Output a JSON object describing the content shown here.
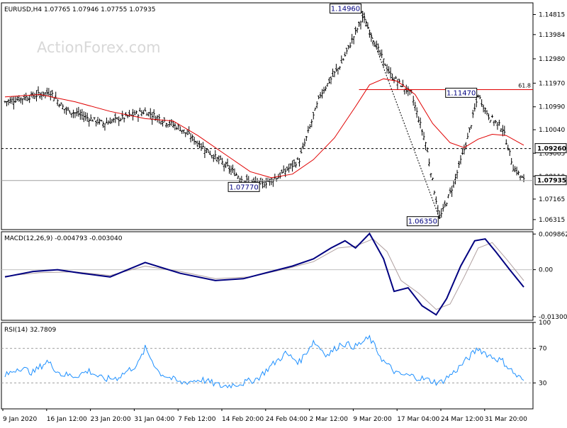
{
  "watermark": "ActionForex.com",
  "colors": {
    "background": "#ffffff",
    "grid_frame": "#000000",
    "bars": "#000000",
    "ma_line": "#e00000",
    "macd_line": "#000080",
    "macd_signal": "#b0a0a0",
    "rsi_line": "#1e90ff",
    "rsi_levels": "#a0a0a0",
    "label_box_text": "#000080",
    "fib_line": "#e00000",
    "watermark": "#d8d8d8"
  },
  "chart_data": [
    {
      "type": "line",
      "panel": "price",
      "header": "EURUSD,H4  1.07765 1.07946 1.07755 1.07935",
      "ylim": [
        1.059,
        1.153
      ],
      "y_ticks": [
        "1.14815",
        "1.13984",
        "1.12980",
        "1.11970",
        "1.10990",
        "1.10040",
        "1.09065",
        "1.08110",
        "1.07165",
        "1.06315"
      ],
      "y_tick_values": [
        1.14815,
        1.13984,
        1.1298,
        1.1197,
        1.1099,
        1.1004,
        1.09065,
        1.0811,
        1.07165,
        1.06315
      ],
      "x_ticks": [
        "9 Jan 2020",
        "16 Jan 12:00",
        "23 Jan 20:00",
        "31 Jan 04:00",
        "7 Feb 12:00",
        "14 Feb 20:00",
        "24 Feb 04:00",
        "2 Mar 12:00",
        "9 Mar 20:00",
        "17 Mar 04:00",
        "24 Mar 12:00",
        "31 Mar 20:00"
      ],
      "close_path": {
        "x_range": [
          0,
          148
        ],
        "anchors": [
          [
            0,
            1.112
          ],
          [
            13,
            1.116
          ],
          [
            17,
            1.109
          ],
          [
            28,
            1.103
          ],
          [
            40,
            1.108
          ],
          [
            50,
            1.101
          ],
          [
            60,
            1.089
          ],
          [
            68,
            1.0795
          ],
          [
            73,
            1.0777
          ],
          [
            78,
            1.081
          ],
          [
            84,
            1.088
          ],
          [
            90,
            1.115
          ],
          [
            96,
            1.128
          ],
          [
            102,
            1.147
          ],
          [
            106,
            1.135
          ],
          [
            110,
            1.123
          ],
          [
            116,
            1.115
          ],
          [
            120,
            1.095
          ],
          [
            124,
            1.0635
          ],
          [
            128,
            1.078
          ],
          [
            132,
            1.097
          ],
          [
            135,
            1.1147
          ],
          [
            138,
            1.106
          ],
          [
            142,
            1.101
          ],
          [
            145,
            1.085
          ],
          [
            148,
            1.0794
          ]
        ]
      },
      "series": [
        {
          "name": "",
          "color": "#e00000",
          "points": [
            [
              0,
              1.114
            ],
            [
              10,
              1.115
            ],
            [
              20,
              1.112
            ],
            [
              30,
              1.108
            ],
            [
              40,
              1.105
            ],
            [
              48,
              1.104
            ],
            [
              55,
              1.098
            ],
            [
              63,
              1.09
            ],
            [
              70,
              1.083
            ],
            [
              76,
              1.0805
            ],
            [
              82,
              1.082
            ],
            [
              88,
              1.088
            ],
            [
              94,
              1.097
            ],
            [
              100,
              1.11
            ],
            [
              104,
              1.119
            ],
            [
              108,
              1.1215
            ],
            [
              112,
              1.1205
            ],
            [
              117,
              1.115
            ],
            [
              122,
              1.103
            ],
            [
              127,
              1.095
            ],
            [
              131,
              1.093
            ],
            [
              135,
              1.0965
            ],
            [
              139,
              1.0985
            ],
            [
              143,
              1.098
            ],
            [
              148,
              1.094
            ]
          ]
        }
      ],
      "horizontal_lines": [
        {
          "value": 1.0926,
          "style": "dashed",
          "color": "#000000",
          "label": "1.09260"
        },
        {
          "value": 1.07935,
          "style": "solid",
          "color": "#a0a0a0",
          "label": "1.07935"
        },
        {
          "value": 1.117,
          "style": "solid",
          "color": "#e00000",
          "x_start": 101,
          "label": "61.8"
        }
      ],
      "annotations": [
        {
          "text": "1.14960",
          "x": 102,
          "value": 1.1496
        },
        {
          "text": "1.11470",
          "x": 135,
          "value": 1.1147
        },
        {
          "text": "1.07770",
          "x": 73,
          "value": 1.0777
        },
        {
          "text": "1.06350",
          "x": 124,
          "value": 1.0635
        }
      ],
      "dashed_connector": [
        [
          102,
          1.1496
        ],
        [
          124,
          1.0635
        ]
      ]
    },
    {
      "type": "line",
      "panel": "macd",
      "header": "MACD(12,26,9) -0.004793 -0.003040",
      "ylim": [
        -0.014,
        0.0105
      ],
      "y_ticks": [
        "0.009862",
        "0.00",
        "-0.013002"
      ],
      "y_tick_values": [
        0.009862,
        0.0,
        -0.013002
      ],
      "series": [
        {
          "name": "MACD(12,26,9)",
          "color": "#000080",
          "points": [
            [
              0,
              -0.002
            ],
            [
              8,
              -0.0005
            ],
            [
              15,
              0.0
            ],
            [
              22,
              -0.001
            ],
            [
              30,
              -0.002
            ],
            [
              40,
              0.002
            ],
            [
              50,
              -0.001
            ],
            [
              60,
              -0.003
            ],
            [
              68,
              -0.0025
            ],
            [
              76,
              -0.0005
            ],
            [
              82,
              0.001
            ],
            [
              88,
              0.003
            ],
            [
              93,
              0.006
            ],
            [
              97,
              0.008
            ],
            [
              100,
              0.006
            ],
            [
              104,
              0.01
            ],
            [
              108,
              0.003
            ],
            [
              111,
              -0.006
            ],
            [
              115,
              -0.005
            ],
            [
              119,
              -0.01
            ],
            [
              123,
              -0.0125
            ],
            [
              126,
              -0.008
            ],
            [
              130,
              0.001
            ],
            [
              134,
              0.008
            ],
            [
              137,
              0.0085
            ],
            [
              140,
              0.005
            ],
            [
              144,
              0.0
            ],
            [
              148,
              -0.0048
            ]
          ]
        },
        {
          "name": "",
          "color": "#b0a0a0",
          "points": [
            [
              0,
              -0.0018
            ],
            [
              10,
              -0.0008
            ],
            [
              20,
              -0.0006
            ],
            [
              30,
              -0.0016
            ],
            [
              40,
              0.001
            ],
            [
              50,
              -0.0005
            ],
            [
              60,
              -0.0025
            ],
            [
              70,
              -0.002
            ],
            [
              80,
              0.0002
            ],
            [
              88,
              0.0022
            ],
            [
              95,
              0.006
            ],
            [
              100,
              0.0065
            ],
            [
              105,
              0.0085
            ],
            [
              109,
              0.005
            ],
            [
              113,
              -0.003
            ],
            [
              118,
              -0.0065
            ],
            [
              123,
              -0.011
            ],
            [
              127,
              -0.0095
            ],
            [
              131,
              -0.002
            ],
            [
              135,
              0.006
            ],
            [
              139,
              0.0075
            ],
            [
              143,
              0.003
            ],
            [
              148,
              -0.003
            ]
          ]
        }
      ]
    },
    {
      "type": "line",
      "panel": "rsi",
      "header": "RSI(14) 32.7809",
      "ylim": [
        0,
        100
      ],
      "y_ticks": [
        "100",
        "70",
        "30"
      ],
      "y_tick_values": [
        100,
        70,
        30
      ],
      "levels": [
        70,
        30
      ],
      "series": [
        {
          "name": "RSI(14)",
          "color": "#1e90ff",
          "points": [
            [
              0,
              38
            ],
            [
              4,
              48
            ],
            [
              8,
              42
            ],
            [
              12,
              55
            ],
            [
              16,
              40
            ],
            [
              20,
              38
            ],
            [
              24,
              44
            ],
            [
              28,
              34
            ],
            [
              32,
              36
            ],
            [
              38,
              52
            ],
            [
              40,
              70
            ],
            [
              44,
              42
            ],
            [
              50,
              30
            ],
            [
              56,
              34
            ],
            [
              62,
              26
            ],
            [
              68,
              30
            ],
            [
              72,
              35
            ],
            [
              76,
              50
            ],
            [
              80,
              64
            ],
            [
              84,
              54
            ],
            [
              88,
              78
            ],
            [
              92,
              62
            ],
            [
              96,
              76
            ],
            [
              100,
              72
            ],
            [
              104,
              82
            ],
            [
              108,
              55
            ],
            [
              112,
              40
            ],
            [
              116,
              38
            ],
            [
              120,
              34
            ],
            [
              124,
              30
            ],
            [
              128,
              42
            ],
            [
              132,
              58
            ],
            [
              135,
              70
            ],
            [
              138,
              62
            ],
            [
              142,
              55
            ],
            [
              146,
              38
            ],
            [
              148,
              33
            ]
          ]
        }
      ]
    }
  ]
}
